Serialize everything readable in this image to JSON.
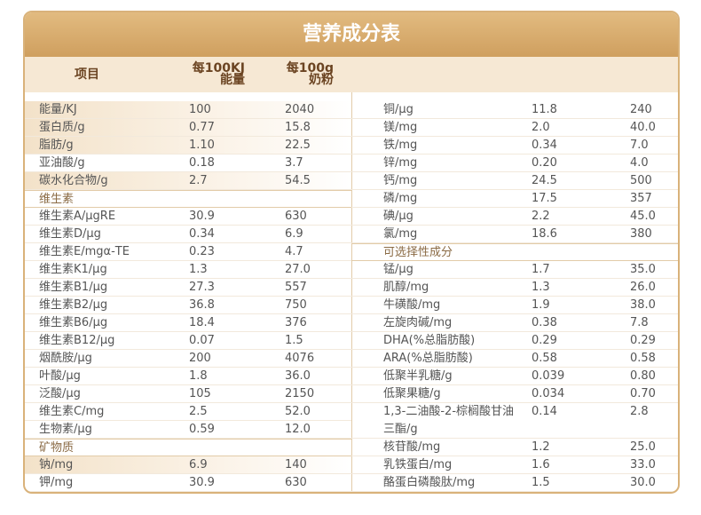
{
  "title": "营养成分表",
  "columns": {
    "name": "项目",
    "kj": [
      "每100KJ",
      "能量"
    ],
    "g": [
      "每100g",
      "奶粉"
    ]
  },
  "left": [
    {
      "name": "能量/KJ",
      "kj": "100",
      "g": "2040",
      "highlight": true
    },
    {
      "name": "蛋白质/g",
      "kj": "0.77",
      "g": "15.8",
      "highlight": true
    },
    {
      "name": "脂肪/g",
      "kj": "1.10",
      "g": "22.5",
      "highlight": true
    },
    {
      "name": "亚油酸/g",
      "kj": "0.18",
      "g": "3.7"
    },
    {
      "name": "碳水化合物/g",
      "kj": "2.7",
      "g": "54.5",
      "highlight": true
    },
    {
      "section": "维生素"
    },
    {
      "name": "维生素A/μgRE",
      "kj": "30.9",
      "g": "630"
    },
    {
      "name": "维生素D/μg",
      "kj": "0.34",
      "g": "6.9"
    },
    {
      "name": "维生素E/mgα-TE",
      "kj": "0.23",
      "g": "4.7"
    },
    {
      "name": "维生素K1/μg",
      "kj": "1.3",
      "g": "27.0"
    },
    {
      "name": "维生素B1/μg",
      "kj": "27.3",
      "g": "557"
    },
    {
      "name": "维生素B2/μg",
      "kj": "36.8",
      "g": "750"
    },
    {
      "name": "维生素B6/μg",
      "kj": "18.4",
      "g": "376"
    },
    {
      "name": "维生素B12/μg",
      "kj": "0.07",
      "g": "1.5"
    },
    {
      "name": "烟酰胺/μg",
      "kj": "200",
      "g": "4076"
    },
    {
      "name": "叶酸/μg",
      "kj": "1.8",
      "g": "36.0"
    },
    {
      "name": "泛酸/μg",
      "kj": "105",
      "g": "2150"
    },
    {
      "name": "维生素C/mg",
      "kj": "2.5",
      "g": "52.0"
    },
    {
      "name": "生物素/μg",
      "kj": "0.59",
      "g": "12.0"
    },
    {
      "section": "矿物质"
    },
    {
      "name": "钠/mg",
      "kj": "6.9",
      "g": "140",
      "highlight": true
    },
    {
      "name": "钾/mg",
      "kj": "30.9",
      "g": "630"
    }
  ],
  "right": [
    {
      "name": "铜/μg",
      "kj": "11.8",
      "g": "240"
    },
    {
      "name": "镁/mg",
      "kj": "2.0",
      "g": "40.0"
    },
    {
      "name": "铁/mg",
      "kj": "0.34",
      "g": "7.0"
    },
    {
      "name": "锌/mg",
      "kj": "0.20",
      "g": "4.0"
    },
    {
      "name": "钙/mg",
      "kj": "24.5",
      "g": "500"
    },
    {
      "name": "磷/mg",
      "kj": "17.5",
      "g": "357"
    },
    {
      "name": "碘/μg",
      "kj": "2.2",
      "g": "45.0"
    },
    {
      "name": "氯/mg",
      "kj": "18.6",
      "g": "380"
    },
    {
      "section": "可选择性成分"
    },
    {
      "name": "锰/μg",
      "kj": "1.7",
      "g": "35.0"
    },
    {
      "name": "肌醇/mg",
      "kj": "1.3",
      "g": "26.0"
    },
    {
      "name": "牛磺酸/mg",
      "kj": "1.9",
      "g": "38.0"
    },
    {
      "name": "左旋肉碱/mg",
      "kj": "0.38",
      "g": "7.8"
    },
    {
      "name": "DHA(%总脂肪酸)",
      "kj": "0.29",
      "g": "0.29"
    },
    {
      "name": "ARA(%总脂肪酸)",
      "kj": "0.58",
      "g": "0.58"
    },
    {
      "name": "低聚半乳糖/g",
      "kj": "0.039",
      "g": "0.80"
    },
    {
      "name": "低聚果糖/g",
      "kj": "0.034",
      "g": "0.70"
    },
    {
      "name": [
        "1,3-二油酸-2-棕榈酸甘油",
        "三酯/g"
      ],
      "kj": "0.14",
      "g": "2.8"
    },
    {
      "name": "核苷酸/mg",
      "kj": "1.2",
      "g": "25.0"
    },
    {
      "name": "乳铁蛋白/mg",
      "kj": "1.6",
      "g": "33.0"
    },
    {
      "name": "酪蛋白磷酸肽/mg",
      "kj": "1.5",
      "g": "30.0"
    }
  ]
}
